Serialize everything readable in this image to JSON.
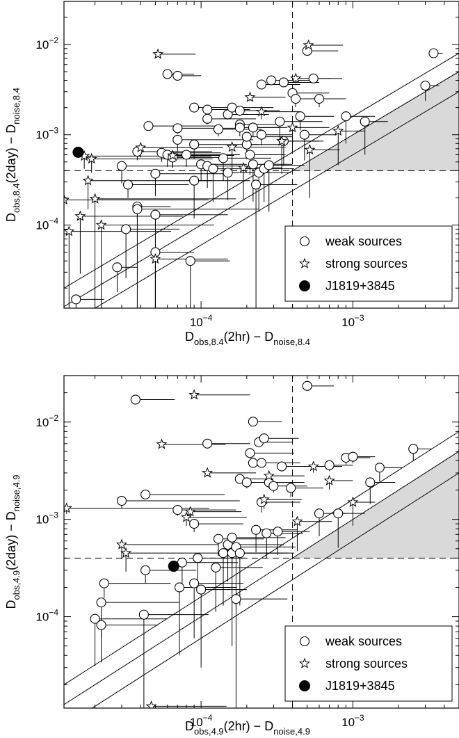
{
  "chart_data": [
    {
      "type": "scatter",
      "xlabel": {
        "main": "D",
        "sub1": "obs,8.4",
        "mid": "(2hr) − D",
        "sub2": "noise,8.4"
      },
      "ylabel": {
        "main": "D",
        "sub1": "obs,8.4",
        "mid": "(2day) − D",
        "sub2": "noise,8.4"
      },
      "x_scale": "log",
      "y_scale": "log",
      "xlim": [
        1.25e-05,
        0.005
      ],
      "ylim": [
        1.2e-05,
        0.03
      ],
      "xticks": [
        {
          "value": 0.0001,
          "base": "10",
          "exp": "−4"
        },
        {
          "value": 0.001,
          "base": "10",
          "exp": "−3"
        }
      ],
      "yticks": [
        {
          "value": 0.0001,
          "base": "10",
          "exp": "−4"
        },
        {
          "value": 0.001,
          "base": "10",
          "exp": "−3"
        },
        {
          "value": 0.01,
          "base": "10",
          "exp": "−2"
        }
      ],
      "threshold_x": 0.0004,
      "threshold_y": 0.0004,
      "diagonal_offsets": [
        0.6,
        1.0,
        1.6
      ],
      "shaded_region": "x > threshold_x and y > threshold_y, below the diagonal y = x",
      "legend": {
        "placement": "bottom-right",
        "entries": [
          {
            "marker": "open-circle",
            "label": "weak sources"
          },
          {
            "marker": "open-star",
            "label": "strong sources"
          },
          {
            "marker": "filled-circle",
            "label": "J1819+3845"
          }
        ]
      },
      "weak_sources": [
        [
          1.5e-05,
          1.5e-05,
          8e-06
        ],
        [
          2.8e-05,
          3.4e-05,
          1e-05
        ],
        [
          3.2e-05,
          9e-05,
          4e-05
        ],
        [
          3.3e-05,
          0.00028,
          5e-05
        ],
        [
          3e-05,
          0.00045,
          0.0001
        ],
        [
          3.8e-05,
          0.00016,
          2.5e-05
        ],
        [
          3.8e-05,
          0.00015,
          0.0002
        ],
        [
          3.8e-05,
          0.00065,
          8e-05
        ],
        [
          5e-05,
          5e-05,
          4e-05
        ],
        [
          5e-05,
          0.00037,
          0.0001
        ],
        [
          5e-05,
          0.00013,
          0.0001
        ],
        [
          4.5e-05,
          0.00125,
          8e-05
        ],
        [
          5.5e-05,
          0.00063,
          8e-05
        ],
        [
          6e-05,
          0.0006,
          0.0001
        ],
        [
          6.5e-05,
          0.00056,
          8e-05
        ],
        [
          6e-05,
          0.0047,
          3e-05
        ],
        [
          7e-05,
          0.0045,
          3e-05
        ],
        [
          7e-05,
          0.00118,
          0.0001
        ],
        [
          7e-05,
          0.00088,
          0.00015
        ],
        [
          8e-05,
          0.0006,
          0.0001
        ],
        [
          8.5e-05,
          4e-05,
          7e-05
        ],
        [
          9e-05,
          0.00031,
          0.00012
        ],
        [
          9e-05,
          0.002,
          0.0001
        ],
        [
          9e-05,
          0.00078,
          0.00015
        ],
        [
          0.0001,
          0.00047,
          0.0001
        ],
        [
          0.00011,
          0.00045,
          0.00012
        ],
        [
          0.00011,
          0.0019,
          0.0001
        ],
        [
          0.00011,
          0.0015,
          0.00012
        ],
        [
          0.00012,
          0.00042,
          0.00015
        ],
        [
          0.00013,
          0.00115,
          0.00012
        ],
        [
          0.00014,
          0.00055,
          0.00015
        ],
        [
          0.00015,
          0.00038,
          0.00012
        ],
        [
          0.00015,
          0.00168,
          0.00013
        ],
        [
          0.00016,
          0.002,
          0.00014
        ],
        [
          0.00018,
          0.0013,
          0.00013
        ],
        [
          0.00018,
          0.0012,
          0.00015
        ],
        [
          0.0002,
          0.00078,
          0.00015
        ],
        [
          0.0002,
          0.00095,
          0.0002
        ],
        [
          0.00021,
          0.0006,
          0.00015
        ],
        [
          0.00022,
          0.0012,
          0.00015
        ],
        [
          0.00022,
          0.00047,
          0.00018
        ],
        [
          0.00023,
          0.00028,
          0.0002
        ],
        [
          0.00024,
          0.00038,
          0.00015
        ],
        [
          0.00025,
          0.001,
          0.00015
        ],
        [
          0.00025,
          0.0036,
          0.0002
        ],
        [
          0.00026,
          0.00042,
          0.00015
        ],
        [
          0.00028,
          0.00046,
          0.0002
        ],
        [
          0.00029,
          0.004,
          0.00025
        ],
        [
          0.00033,
          0.0014,
          0.0003
        ],
        [
          0.00035,
          0.0038,
          0.00025
        ],
        [
          0.00035,
          0.00085,
          0.00025
        ],
        [
          0.0004,
          0.0029,
          0.0003
        ],
        [
          0.00042,
          0.0025,
          0.0003
        ],
        [
          0.00045,
          0.0016,
          0.0003
        ],
        [
          0.0005,
          0.0085,
          0.0003
        ],
        [
          0.00048,
          0.001,
          0.0003
        ],
        [
          0.0006,
          0.0025,
          0.0003
        ],
        [
          0.0009,
          0.0016,
          0.0005
        ],
        [
          0.0012,
          0.0014,
          0.0005
        ],
        [
          0.003,
          0.0035,
          0.0007
        ],
        [
          0.0034,
          0.008,
          0.0005
        ],
        [
          0.00055,
          0.0042,
          0.0003
        ],
        [
          0.00018,
          0.00185,
          0.00015
        ]
      ],
      "strong_sources": [
        [
          1.25e-05,
          0.00019,
          0.0001
        ],
        [
          1.35e-05,
          8.5e-05,
          5e-05
        ],
        [
          1.6e-05,
          0.000125,
          6e-05
        ],
        [
          1.8e-05,
          0.00031,
          0.0001
        ],
        [
          1.7e-05,
          0.00058,
          0.0001
        ],
        [
          1.9e-05,
          0.00054,
          0.0001
        ],
        [
          2e-05,
          0.000195,
          0.00015
        ],
        [
          2.2e-05,
          0.0001,
          0.0001
        ],
        [
          4e-05,
          0.00072,
          0.0001
        ],
        [
          5e-05,
          4.2e-05,
          0.0001
        ],
        [
          5.2e-05,
          0.0078,
          4e-05
        ],
        [
          6.5e-05,
          0.00059,
          0.0001
        ],
        [
          0.00016,
          0.00073,
          0.0002
        ],
        [
          0.00019,
          0.00043,
          0.00015
        ],
        [
          0.00021,
          0.0026,
          0.00015
        ],
        [
          0.00025,
          0.0018,
          0.0002
        ],
        [
          0.0004,
          0.0012,
          0.0003
        ],
        [
          0.00042,
          0.0042,
          0.0003
        ],
        [
          0.00051,
          0.0098,
          0.00035
        ],
        [
          0.00052,
          0.00068,
          0.0003
        ],
        [
          0.0008,
          0.0011,
          0.0004
        ],
        [
          0.00034,
          0.00085,
          0.0003
        ]
      ],
      "j1819": [
        1.55e-05,
        0.00064
      ]
    },
    {
      "type": "scatter",
      "xlabel": {
        "main": "D",
        "sub1": "obs,4.9",
        "mid": "(2hr) − D",
        "sub2": "noise,4.9"
      },
      "ylabel": {
        "main": "D",
        "sub1": "obs,4.9",
        "mid": "(2day) − D",
        "sub2": "noise,4.9"
      },
      "x_scale": "log",
      "y_scale": "log",
      "xlim": [
        1.25e-05,
        0.005
      ],
      "ylim": [
        1.15e-05,
        0.03
      ],
      "xticks": [
        {
          "value": 0.0001,
          "base": "10",
          "exp": "−4"
        },
        {
          "value": 0.001,
          "base": "10",
          "exp": "−3"
        }
      ],
      "yticks": [
        {
          "value": 0.0001,
          "base": "10",
          "exp": "−4"
        },
        {
          "value": 0.001,
          "base": "10",
          "exp": "−3"
        },
        {
          "value": 0.01,
          "base": "10",
          "exp": "−2"
        }
      ],
      "threshold_x": 0.0004,
      "threshold_y": 0.0004,
      "diagonal_offsets": [
        0.6,
        1.0,
        1.6
      ],
      "shaded_region": "x > threshold_x and y > threshold_y, below the diagonal y = x",
      "legend": {
        "placement": "bottom-right",
        "entries": [
          {
            "marker": "open-circle",
            "label": "weak sources"
          },
          {
            "marker": "open-star",
            "label": "strong sources"
          },
          {
            "marker": "filled-circle",
            "label": "J1819+3845"
          }
        ]
      },
      "weak_sources": [
        [
          3.7e-05,
          0.017,
          3e-05
        ],
        [
          2.3e-05,
          0.00022,
          4e-05
        ],
        [
          2.2e-05,
          0.00014,
          5e-05
        ],
        [
          2e-05,
          9.5e-05,
          4e-05
        ],
        [
          2.2e-05,
          8.2e-05,
          3e-05
        ],
        [
          3e-05,
          0.00155,
          0.00015
        ],
        [
          4.3e-05,
          0.0018,
          0.0001
        ],
        [
          4.3e-05,
          0.0003,
          5e-05
        ],
        [
          4.2e-05,
          0.000105,
          7e-05
        ],
        [
          7e-05,
          0.00125,
          0.0001
        ],
        [
          7.2e-05,
          0.0002,
          0.0001
        ],
        [
          7.5e-05,
          0.00036,
          0.0001
        ],
        [
          9e-05,
          0.0009,
          0.0001
        ],
        [
          9.5e-05,
          0.0004,
          0.0001
        ],
        [
          9e-05,
          0.00022,
          0.0001
        ],
        [
          0.0001,
          0.00019,
          0.0001
        ],
        [
          0.00011,
          0.006,
          0.0001
        ],
        [
          0.000125,
          0.00032,
          0.00013
        ],
        [
          0.00013,
          0.00063,
          0.00013
        ],
        [
          0.00014,
          0.00045,
          0.0002
        ],
        [
          0.00015,
          0.00055,
          0.0002
        ],
        [
          0.00016,
          0.00065,
          0.0002
        ],
        [
          0.00016,
          0.00045,
          0.00025
        ],
        [
          0.00017,
          0.000152,
          0.0002
        ],
        [
          0.00017,
          0.00052,
          0.00025
        ],
        [
          0.00018,
          0.00045,
          0.0002
        ],
        [
          0.00018,
          0.0026,
          0.00012
        ],
        [
          0.0002,
          0.0024,
          0.0002
        ],
        [
          0.00021,
          0.0048,
          0.0002
        ],
        [
          0.00022,
          0.0101,
          0.00012
        ],
        [
          0.00022,
          0.0038,
          0.00015
        ],
        [
          0.00024,
          0.0062,
          0.00016
        ],
        [
          0.00025,
          0.0015,
          0.0002
        ],
        [
          0.00025,
          0.0038,
          0.0002
        ],
        [
          0.00026,
          0.0068,
          0.00018
        ],
        [
          0.00028,
          0.0024,
          0.0002
        ],
        [
          0.0003,
          0.0022,
          0.0002
        ],
        [
          0.00032,
          0.00075,
          0.0002
        ],
        [
          0.00034,
          0.0035,
          0.00025
        ],
        [
          0.00039,
          0.0021,
          0.00025
        ],
        [
          0.0005,
          0.0235,
          0.00025
        ],
        [
          0.0006,
          0.00115,
          0.0003
        ],
        [
          0.0007,
          0.0036,
          0.0003
        ],
        [
          0.0008,
          0.00115,
          0.0004
        ],
        [
          0.0009,
          0.0043,
          0.0004
        ],
        [
          0.001,
          0.0044,
          0.0004
        ],
        [
          0.0013,
          0.0024,
          0.0006
        ],
        [
          0.0015,
          0.0034,
          0.0006
        ],
        [
          0.0025,
          0.0053,
          0.0008
        ],
        [
          0.00027,
          0.00072,
          0.0002
        ],
        [
          0.00023,
          0.00078,
          0.0002
        ]
      ],
      "strong_sources": [
        [
          1.3e-05,
          0.0013,
          0.0001
        ],
        [
          3e-05,
          0.00055,
          0.0001
        ],
        [
          3.2e-05,
          0.00045,
          0.0001
        ],
        [
          4.7e-05,
          1.2e-05,
          0.0001
        ],
        [
          5.5e-05,
          0.0059,
          9e-05
        ],
        [
          8e-05,
          0.00105,
          0.00012
        ],
        [
          8.5e-05,
          0.0012,
          0.0001
        ],
        [
          9e-05,
          0.019,
          0.00012
        ],
        [
          0.00011,
          0.003,
          0.00012
        ],
        [
          0.00026,
          0.0016,
          0.0002
        ],
        [
          0.00028,
          0.0028,
          0.0002
        ],
        [
          0.00043,
          0.00095,
          0.0003
        ],
        [
          0.00055,
          0.0035,
          0.0003
        ],
        [
          0.0007,
          0.0025,
          0.0003
        ],
        [
          0.001,
          0.0015,
          0.0004
        ]
      ],
      "j1819": [
        6.6e-05,
        0.00033
      ]
    }
  ]
}
